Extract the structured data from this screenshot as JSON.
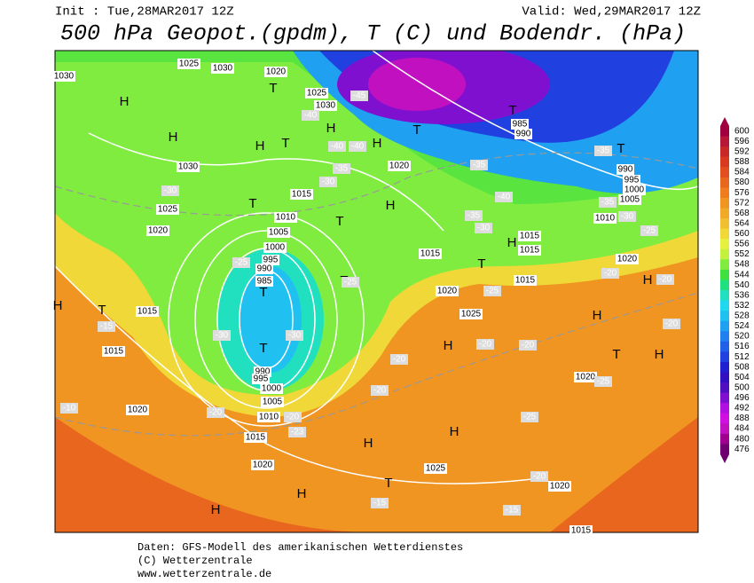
{
  "header": {
    "init": "Init : Tue,28MAR2017 12Z",
    "valid": "Valid: Wed,29MAR2017 12Z",
    "title": "500 hPa Geopot.(gpdm), T (C) und Bodendr. (hPa)"
  },
  "colorbar": {
    "levels": [
      600,
      596,
      592,
      588,
      584,
      580,
      576,
      572,
      568,
      564,
      560,
      556,
      552,
      548,
      544,
      540,
      536,
      532,
      528,
      524,
      520,
      516,
      512,
      508,
      504,
      500,
      496,
      492,
      488,
      484,
      480,
      476
    ],
    "colors": [
      "#a00040",
      "#b81838",
      "#c82828",
      "#d83a20",
      "#e24e1e",
      "#e8661e",
      "#f07c20",
      "#f09422",
      "#f0aa28",
      "#f0c030",
      "#f0d838",
      "#e6f040",
      "#c4f040",
      "#80ec40",
      "#40e040",
      "#20e080",
      "#20e0c0",
      "#20d8f0",
      "#20c0f0",
      "#20a0f0",
      "#2080f0",
      "#2060e8",
      "#2040e0",
      "#2020d0",
      "#3010c0",
      "#5010c0",
      "#8010d0",
      "#b010e0",
      "#d010e0",
      "#c010c0",
      "#a00090",
      "#700070"
    ]
  },
  "markers": [
    "H",
    "H",
    "H",
    "H",
    "H",
    "H",
    "H",
    "H",
    "H",
    "H",
    "H",
    "H",
    "H",
    "H",
    "H",
    "H",
    "T",
    "T",
    "T",
    "T",
    "T",
    "T",
    "T",
    "T",
    "T",
    "T",
    "T",
    "T",
    "T",
    "T"
  ],
  "isobar_labels": [
    "1025",
    "1030",
    "1020",
    "1030",
    "1025",
    "1030",
    "1030",
    "1025",
    "1020",
    "1020",
    "1015",
    "1010",
    "1005",
    "1000",
    "995",
    "990",
    "985",
    "990",
    "995",
    "1000",
    "1005",
    "1010",
    "1015",
    "1020",
    "1020",
    "1015",
    "1015",
    "1020",
    "1025",
    "1015",
    "1015",
    "1015",
    "1015",
    "1020",
    "985",
    "990",
    "990",
    "995",
    "1000",
    "1005",
    "1010",
    "1025",
    "1020",
    "1015",
    "1020"
  ],
  "temperature_labels": [
    "-45",
    "-40",
    "-40",
    "-40",
    "-35",
    "-30",
    "-30",
    "-35",
    "-35",
    "-30",
    "-25",
    "-40",
    "-35",
    "-30",
    "-35",
    "-25",
    "-25",
    "-30",
    "-30",
    "-20",
    "-23",
    "-20",
    "-15",
    "-10",
    "-20",
    "-20",
    "-20",
    "-20",
    "-25",
    "-20",
    "-15",
    "-15",
    "-20",
    "-20",
    "-20",
    "-25",
    "-25"
  ],
  "footer": [
    "Daten: GFS-Modell des amerikanischen Wetterdienstes",
    "(C) Wetterzentrale",
    "www.wetterzentrale.de"
  ]
}
